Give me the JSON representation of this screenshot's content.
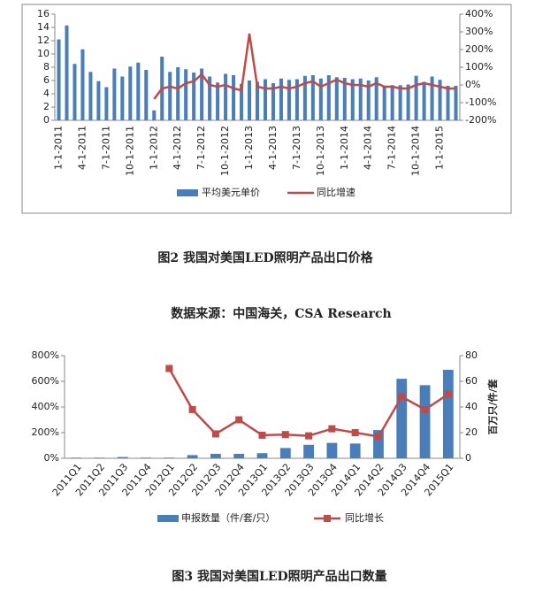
{
  "chart_data": [
    {
      "type": "bar_line",
      "caption": "图2 我国对美国LED照明产品出口价格",
      "source": "数据来源：中国海关，CSA Research",
      "categories": [
        "1-1-2011",
        null,
        null,
        "4-1-2011",
        null,
        null,
        "7-1-2011",
        null,
        null,
        "10-1-2011",
        null,
        null,
        "1-1-2012",
        null,
        null,
        "4-1-2012",
        null,
        null,
        "7-1-2012",
        null,
        null,
        "10-1-2012",
        null,
        null,
        "1-1-2013",
        null,
        null,
        "4-1-2013",
        null,
        null,
        "7-1-2013",
        null,
        null,
        "10-1-2013",
        null,
        null,
        "1-1-2014",
        null,
        null,
        "4-1-2014",
        null,
        null,
        "7-1-2014",
        null,
        null,
        "10-1-2014",
        null,
        null,
        "1-1-2015",
        null,
        null
      ],
      "series": [
        {
          "name": "平均美元单价",
          "kind": "bar",
          "axis": "y",
          "color": "#4a7ebb",
          "values": [
            12.2,
            14.3,
            8.5,
            10.7,
            7.3,
            5.9,
            5.0,
            7.8,
            6.6,
            8.1,
            8.7,
            7.6,
            1.5,
            9.6,
            7.3,
            8.0,
            7.7,
            7.2,
            7.8,
            6.6,
            5.7,
            7.0,
            6.8,
            5.5,
            6.0,
            5.8,
            6.2,
            5.6,
            6.3,
            6.1,
            6.2,
            6.7,
            6.8,
            6.3,
            6.8,
            6.5,
            6.4,
            6.2,
            6.3,
            6.0,
            6.5,
            5.2,
            5.3,
            5.3,
            5.4,
            6.7,
            5.8,
            6.6,
            6.1,
            5.2,
            5.2
          ]
        },
        {
          "name": "同比增速",
          "kind": "line",
          "axis": "y2",
          "color": "#be4b48",
          "values": [
            null,
            null,
            null,
            null,
            null,
            null,
            null,
            null,
            null,
            null,
            null,
            null,
            -80,
            -20,
            -10,
            -20,
            10,
            20,
            60,
            0,
            -10,
            0,
            -20,
            -30,
            290,
            -10,
            -20,
            -20,
            -10,
            -20,
            -10,
            10,
            20,
            -10,
            10,
            30,
            10,
            0,
            0,
            -10,
            10,
            -10,
            -10,
            -20,
            -20,
            0,
            10,
            0,
            -10,
            -20,
            -20
          ]
        }
      ],
      "ylim": [
        0,
        16
      ],
      "yticks": [
        0,
        2,
        4,
        6,
        8,
        10,
        12,
        14,
        16
      ],
      "y2lim": [
        -200,
        400
      ],
      "y2ticks": [
        {
          "value": -200,
          "label": "-200%"
        },
        {
          "value": -100,
          "label": "-100%"
        },
        {
          "value": 0,
          "label": "0%"
        },
        {
          "value": 100,
          "label": "100%"
        },
        {
          "value": 200,
          "label": "200%"
        },
        {
          "value": 300,
          "label": "300%"
        },
        {
          "value": 400,
          "label": "400%"
        }
      ],
      "grid": false
    },
    {
      "type": "bar_line",
      "caption": "图3 我国对美国LED照明产品出口数量",
      "y2_label": "百万只/件/套",
      "categories": [
        "2011Q1",
        "2011Q2",
        "2011Q3",
        "2011Q4",
        "2012Q1",
        "2012Q2",
        "2012Q3",
        "2012Q4",
        "2013Q1",
        "2013Q2",
        "2013Q3",
        "2013Q4",
        "2014Q1",
        "2014Q2",
        "2014Q3",
        "2014Q4",
        "2015Q1"
      ],
      "series": [
        {
          "name": "申报数量（件/套/只）",
          "kind": "bar",
          "axis": "y2",
          "color": "#4a7ebb",
          "values": [
            0.5,
            0.5,
            1,
            0.5,
            0.5,
            2.5,
            3.5,
            3.5,
            4,
            8,
            10.5,
            12,
            11.5,
            22,
            62,
            57,
            69
          ]
        },
        {
          "name": "同比增长",
          "kind": "line",
          "axis": "y",
          "color": "#be4b48",
          "marker": "square",
          "values": [
            null,
            null,
            null,
            null,
            700,
            380,
            190,
            300,
            180,
            185,
            175,
            230,
            200,
            170,
            480,
            380,
            500
          ]
        }
      ],
      "ylim": [
        0,
        800
      ],
      "yticks": [
        {
          "value": 0,
          "label": "0%"
        },
        {
          "value": 200,
          "label": "200%"
        },
        {
          "value": 400,
          "label": "400%"
        },
        {
          "value": 600,
          "label": "600%"
        },
        {
          "value": 800,
          "label": "800%"
        }
      ],
      "y2lim": [
        0,
        80
      ],
      "y2ticks": [
        0,
        20,
        40,
        60,
        80
      ],
      "grid": false
    }
  ]
}
